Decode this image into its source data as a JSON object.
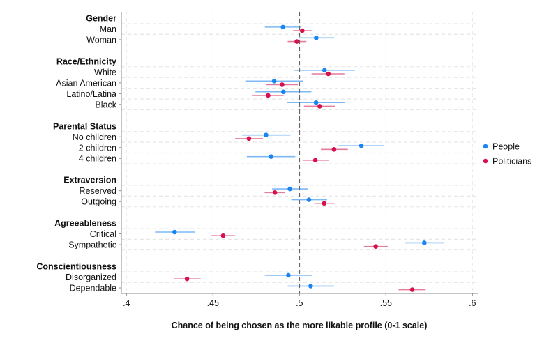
{
  "chart_data": {
    "type": "scatter",
    "title": "",
    "xlabel": "Chance of being chosen as the more likable profile (0-1 scale)",
    "ylabel": "",
    "xlim": [
      0.4,
      0.6
    ],
    "xticks": [
      ".4",
      ".45",
      ".5",
      ".55",
      ".6"
    ],
    "xtick_values": [
      0.4,
      0.45,
      0.5,
      0.55,
      0.6
    ],
    "reference_line": 0.5,
    "grid": true,
    "legend_position": "right",
    "series": [
      {
        "name": "People",
        "color": "#1a85f0",
        "ci_color": "#7db8f4"
      },
      {
        "name": "Politicians",
        "color": "#d6114e",
        "ci_color": "#e47c9c"
      }
    ],
    "groups": [
      {
        "label": "Gender",
        "items": [
          {
            "label": "Man",
            "People": [
              0.4905,
              0.48,
              0.501
            ],
            "Politicians": [
              0.5016,
              0.4963,
              0.507
            ]
          },
          {
            "label": "Woman",
            "People": [
              0.5097,
              0.4996,
              0.52
            ],
            "Politicians": [
              0.4985,
              0.4932,
              0.504
            ]
          }
        ]
      },
      {
        "label": "Race/Ethnicity",
        "items": [
          {
            "label": "White",
            "People": [
              0.5145,
              0.497,
              0.532
            ],
            "Politicians": [
              0.5167,
              0.507,
              0.526
            ]
          },
          {
            "label": "Asian American",
            "People": [
              0.4854,
              0.4687,
              0.502
            ],
            "Politicians": [
              0.49,
              0.4808,
              0.4991
            ]
          },
          {
            "label": "Latino/Latina",
            "People": [
              0.4907,
              0.4746,
              0.5069
            ],
            "Politicians": [
              0.4819,
              0.4729,
              0.4909
            ]
          },
          {
            "label": "Black",
            "People": [
              0.5096,
              0.4928,
              0.5264
            ],
            "Politicians": [
              0.5117,
              0.5026,
              0.5207
            ]
          }
        ]
      },
      {
        "label": "Parental Status",
        "items": [
          {
            "label": "No children",
            "People": [
              0.4807,
              0.4668,
              0.4948
            ],
            "Politicians": [
              0.4708,
              0.4628,
              0.4789
            ]
          },
          {
            "label": "2 children",
            "People": [
              0.5358,
              0.5226,
              0.549
            ],
            "Politicians": [
              0.52,
              0.5124,
              0.528
            ]
          },
          {
            "label": "4 children",
            "People": [
              0.4836,
              0.4696,
              0.4976
            ],
            "Politicians": [
              0.5092,
              0.5018,
              0.5168
            ]
          }
        ]
      },
      {
        "label": "Extraversion",
        "items": [
          {
            "label": "Reserved",
            "People": [
              0.4945,
              0.4842,
              0.505
            ],
            "Politicians": [
              0.4858,
              0.4799,
              0.4917
            ]
          },
          {
            "label": "Outgoing",
            "People": [
              0.5055,
              0.4953,
              0.516
            ],
            "Politicians": [
              0.5143,
              0.5086,
              0.5202
            ]
          }
        ]
      },
      {
        "label": "Agreeableness",
        "items": [
          {
            "label": "Critical",
            "People": [
              0.4278,
              0.4165,
              0.4394
            ],
            "Politicians": [
              0.4559,
              0.4491,
              0.4629
            ]
          },
          {
            "label": "Sympathetic",
            "People": [
              0.5722,
              0.5608,
              0.5836
            ],
            "Politicians": [
              0.5441,
              0.5373,
              0.551
            ]
          }
        ]
      },
      {
        "label": "Conscientiousness",
        "items": [
          {
            "label": "Disorganized",
            "People": [
              0.4936,
              0.48,
              0.5071
            ],
            "Politicians": [
              0.435,
              0.4273,
              0.4429
            ]
          },
          {
            "label": "Dependable",
            "People": [
              0.5065,
              0.4932,
              0.52
            ],
            "Politicians": [
              0.5652,
              0.5573,
              0.573
            ]
          }
        ]
      }
    ]
  }
}
